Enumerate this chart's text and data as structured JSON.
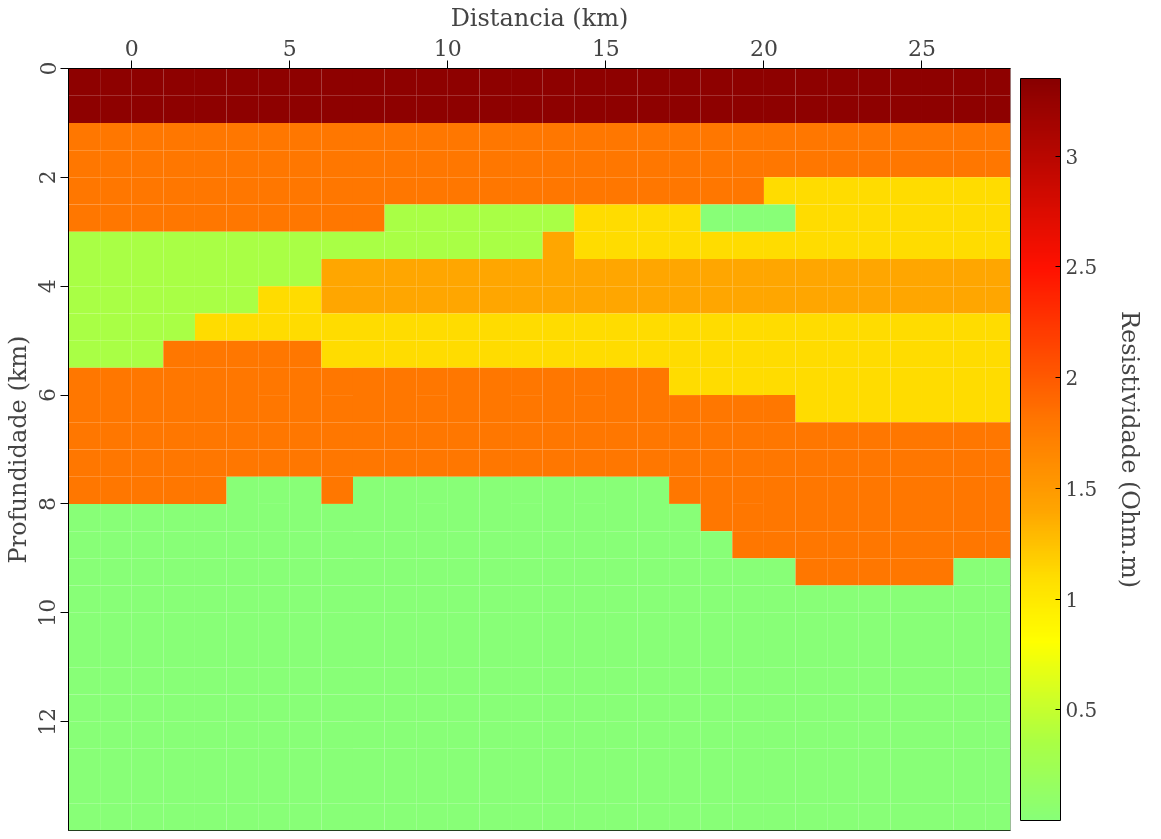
{
  "chart_data": {
    "type": "heatmap",
    "xlabel": "Distancia (km)",
    "ylabel": "Profundidade (km)",
    "clabel": "Resistividade (Ohm.m)",
    "x": [
      -1.5,
      -0.5,
      0.5,
      1.5,
      2.5,
      3.5,
      4.5,
      5.5,
      6.5,
      7.5,
      8.5,
      9.5,
      10.5,
      11.5,
      12.5,
      13.5,
      14.5,
      15.5,
      16.5,
      17.5,
      18.5,
      19.5,
      20.5,
      21.5,
      22.5,
      23.5,
      24.5,
      25.5,
      26.5,
      27.5
    ],
    "y": [
      0.25,
      0.75,
      1.25,
      1.75,
      2.25,
      2.75,
      3.25,
      3.75,
      4.25,
      4.75,
      5.25,
      5.75,
      6.25,
      6.75,
      7.25,
      7.75,
      8.25,
      8.75,
      9.25,
      9.75,
      10.25,
      10.75,
      11.25,
      11.75,
      12.25,
      12.75,
      13.25,
      13.75
    ],
    "xlim": [
      -2,
      27.8
    ],
    "ylim": [
      14,
      0
    ],
    "xticks": [
      0,
      5,
      10,
      15,
      20,
      25
    ],
    "yticks": [
      0,
      2,
      4,
      6,
      8,
      10,
      12
    ],
    "clim": [
      0,
      3.35
    ],
    "cticks": [
      0.5,
      1,
      1.5,
      2,
      2.5,
      3
    ],
    "grid": false,
    "cells": [
      [
        3.3,
        3.3,
        3.3,
        3.3,
        3.3,
        3.3,
        3.3,
        3.3,
        3.3,
        3.3,
        3.3,
        3.3,
        3.3,
        3.3,
        3.3,
        3.3,
        3.3,
        3.3,
        3.3,
        3.3,
        3.3,
        3.3,
        3.3,
        3.3,
        3.3,
        3.3,
        3.3,
        3.3,
        3.3,
        3.3
      ],
      [
        3.3,
        3.3,
        3.3,
        3.3,
        3.3,
        3.3,
        3.3,
        3.3,
        3.3,
        3.3,
        3.3,
        3.3,
        3.3,
        3.3,
        3.3,
        3.3,
        3.3,
        3.3,
        3.3,
        3.3,
        3.3,
        3.3,
        3.3,
        3.3,
        3.3,
        3.3,
        3.3,
        3.3,
        3.3,
        3.3
      ],
      [
        1.8,
        1.8,
        1.8,
        1.8,
        1.8,
        1.8,
        1.8,
        1.8,
        1.8,
        1.8,
        1.8,
        1.8,
        1.8,
        1.8,
        1.8,
        1.8,
        1.8,
        1.8,
        1.8,
        1.8,
        1.8,
        1.8,
        1.8,
        1.8,
        1.8,
        1.8,
        1.8,
        1.8,
        1.8,
        1.8
      ],
      [
        1.8,
        1.8,
        1.8,
        1.8,
        1.8,
        1.8,
        1.8,
        1.8,
        1.8,
        1.8,
        1.8,
        1.8,
        1.8,
        1.8,
        1.8,
        1.8,
        1.8,
        1.8,
        1.8,
        1.8,
        1.8,
        1.8,
        1.8,
        1.8,
        1.8,
        1.8,
        1.8,
        1.8,
        1.8,
        1.8
      ],
      [
        1.8,
        1.8,
        1.8,
        1.8,
        1.8,
        1.8,
        1.8,
        1.8,
        1.8,
        1.8,
        1.8,
        1.8,
        1.8,
        1.8,
        1.8,
        1.8,
        1.8,
        1.8,
        1.8,
        1.8,
        1.8,
        1.8,
        1.1,
        1.1,
        1.1,
        1.1,
        1.1,
        1.1,
        1.1,
        1.1
      ],
      [
        1.8,
        1.8,
        1.8,
        1.8,
        1.8,
        1.8,
        1.8,
        1.8,
        1.8,
        1.8,
        0.35,
        0.35,
        0.35,
        0.35,
        0.35,
        0.35,
        1.1,
        1.1,
        1.1,
        1.1,
        0,
        0,
        0,
        1.1,
        1.1,
        1.1,
        1.1,
        1.1,
        1.1,
        1.1
      ],
      [
        0.35,
        0.35,
        0.35,
        0.35,
        0.35,
        0.35,
        0.35,
        0.35,
        0.35,
        0.35,
        0.35,
        0.35,
        0.35,
        0.35,
        0.35,
        1.4,
        1.1,
        1.1,
        1.1,
        1.1,
        1.1,
        1.1,
        1.1,
        1.1,
        1.1,
        1.1,
        1.1,
        1.1,
        1.1,
        1.1
      ],
      [
        0.35,
        0.35,
        0.35,
        0.35,
        0.35,
        0.35,
        0.35,
        0.35,
        1.4,
        1.4,
        1.4,
        1.4,
        1.4,
        1.4,
        1.4,
        1.4,
        1.4,
        1.4,
        1.4,
        1.4,
        1.4,
        1.4,
        1.4,
        1.4,
        1.4,
        1.4,
        1.4,
        1.4,
        1.4,
        1.4
      ],
      [
        0.35,
        0.35,
        0.35,
        0.35,
        0.35,
        0.35,
        1.1,
        1.1,
        1.4,
        1.4,
        1.4,
        1.4,
        1.4,
        1.4,
        1.4,
        1.4,
        1.4,
        1.4,
        1.4,
        1.4,
        1.4,
        1.4,
        1.4,
        1.4,
        1.4,
        1.4,
        1.4,
        1.4,
        1.4,
        1.4
      ],
      [
        0.35,
        0.35,
        0.35,
        0.35,
        1.1,
        1.1,
        1.1,
        1.1,
        1.1,
        1.1,
        1.1,
        1.1,
        1.1,
        1.1,
        1.1,
        1.1,
        1.1,
        1.1,
        1.1,
        1.1,
        1.1,
        1.1,
        1.1,
        1.1,
        1.1,
        1.1,
        1.1,
        1.1,
        1.1,
        1.1
      ],
      [
        0.35,
        0.35,
        0.35,
        1.8,
        1.8,
        1.8,
        1.8,
        1.8,
        1.1,
        1.1,
        1.1,
        1.1,
        1.1,
        1.1,
        1.1,
        1.1,
        1.1,
        1.1,
        1.1,
        1.1,
        1.1,
        1.1,
        1.1,
        1.1,
        1.1,
        1.1,
        1.1,
        1.1,
        1.1,
        1.1
      ],
      [
        1.8,
        1.8,
        1.8,
        1.8,
        1.8,
        1.8,
        1.8,
        1.8,
        1.8,
        1.8,
        1.8,
        1.8,
        1.8,
        1.8,
        1.8,
        1.8,
        1.8,
        1.8,
        1.8,
        1.1,
        1.1,
        1.1,
        1.1,
        1.1,
        1.1,
        1.1,
        1.1,
        1.1,
        1.1,
        1.1
      ],
      [
        1.8,
        1.8,
        1.8,
        1.8,
        1.8,
        1.8,
        1.8,
        1.8,
        1.8,
        1.8,
        1.8,
        1.8,
        1.8,
        1.8,
        1.8,
        1.8,
        1.8,
        1.8,
        1.8,
        1.8,
        1.8,
        1.8,
        1.8,
        1.1,
        1.1,
        1.1,
        1.1,
        1.1,
        1.1,
        1.1
      ],
      [
        1.8,
        1.8,
        1.8,
        1.8,
        1.8,
        1.8,
        1.8,
        1.8,
        1.8,
        1.8,
        1.8,
        1.8,
        1.8,
        1.8,
        1.8,
        1.8,
        1.8,
        1.8,
        1.8,
        1.8,
        1.8,
        1.8,
        1.8,
        1.8,
        1.8,
        1.8,
        1.8,
        1.8,
        1.8,
        1.8
      ],
      [
        1.8,
        1.8,
        1.8,
        1.8,
        1.8,
        1.8,
        1.8,
        1.8,
        1.8,
        1.8,
        1.8,
        1.8,
        1.8,
        1.8,
        1.8,
        1.8,
        1.8,
        1.8,
        1.8,
        1.8,
        1.8,
        1.8,
        1.8,
        1.8,
        1.8,
        1.8,
        1.8,
        1.8,
        1.8,
        1.8
      ],
      [
        1.8,
        1.8,
        1.8,
        1.8,
        1.8,
        0,
        0,
        0,
        1.8,
        0,
        0,
        0,
        0,
        0,
        0,
        0,
        0,
        0,
        0,
        1.8,
        1.8,
        1.8,
        1.8,
        1.8,
        1.8,
        1.8,
        1.8,
        1.8,
        1.8,
        1.8
      ],
      [
        0,
        0,
        0,
        0,
        0,
        0,
        0,
        0,
        0,
        0,
        0,
        0,
        0,
        0,
        0,
        0,
        0,
        0,
        0,
        0,
        1.8,
        1.8,
        1.8,
        1.8,
        1.8,
        1.8,
        1.8,
        1.8,
        1.8,
        1.8
      ],
      [
        0,
        0,
        0,
        0,
        0,
        0,
        0,
        0,
        0,
        0,
        0,
        0,
        0,
        0,
        0,
        0,
        0,
        0,
        0,
        0,
        0,
        1.8,
        1.8,
        1.8,
        1.8,
        1.8,
        1.8,
        1.8,
        1.8,
        1.8
      ],
      [
        0,
        0,
        0,
        0,
        0,
        0,
        0,
        0,
        0,
        0,
        0,
        0,
        0,
        0,
        0,
        0,
        0,
        0,
        0,
        0,
        0,
        0,
        0,
        1.8,
        1.8,
        1.8,
        1.8,
        1.8,
        0,
        0
      ],
      [
        0,
        0,
        0,
        0,
        0,
        0,
        0,
        0,
        0,
        0,
        0,
        0,
        0,
        0,
        0,
        0,
        0,
        0,
        0,
        0,
        0,
        0,
        0,
        0,
        0,
        0,
        0,
        0,
        0,
        0
      ],
      [
        0,
        0,
        0,
        0,
        0,
        0,
        0,
        0,
        0,
        0,
        0,
        0,
        0,
        0,
        0,
        0,
        0,
        0,
        0,
        0,
        0,
        0,
        0,
        0,
        0,
        0,
        0,
        0,
        0,
        0
      ],
      [
        0,
        0,
        0,
        0,
        0,
        0,
        0,
        0,
        0,
        0,
        0,
        0,
        0,
        0,
        0,
        0,
        0,
        0,
        0,
        0,
        0,
        0,
        0,
        0,
        0,
        0,
        0,
        0,
        0,
        0
      ],
      [
        0,
        0,
        0,
        0,
        0,
        0,
        0,
        0,
        0,
        0,
        0,
        0,
        0,
        0,
        0,
        0,
        0,
        0,
        0,
        0,
        0,
        0,
        0,
        0,
        0,
        0,
        0,
        0,
        0,
        0
      ],
      [
        0,
        0,
        0,
        0,
        0,
        0,
        0,
        0,
        0,
        0,
        0,
        0,
        0,
        0,
        0,
        0,
        0,
        0,
        0,
        0,
        0,
        0,
        0,
        0,
        0,
        0,
        0,
        0,
        0,
        0
      ],
      [
        0,
        0,
        0,
        0,
        0,
        0,
        0,
        0,
        0,
        0,
        0,
        0,
        0,
        0,
        0,
        0,
        0,
        0,
        0,
        0,
        0,
        0,
        0,
        0,
        0,
        0,
        0,
        0,
        0,
        0
      ],
      [
        0,
        0,
        0,
        0,
        0,
        0,
        0,
        0,
        0,
        0,
        0,
        0,
        0,
        0,
        0,
        0,
        0,
        0,
        0,
        0,
        0,
        0,
        0,
        0,
        0,
        0,
        0,
        0,
        0,
        0
      ],
      [
        0,
        0,
        0,
        0,
        0,
        0,
        0,
        0,
        0,
        0,
        0,
        0,
        0,
        0,
        0,
        0,
        0,
        0,
        0,
        0,
        0,
        0,
        0,
        0,
        0,
        0,
        0,
        0,
        0,
        0
      ],
      [
        0,
        0,
        0,
        0,
        0,
        0,
        0,
        0,
        0,
        0,
        0,
        0,
        0,
        0,
        0,
        0,
        0,
        0,
        0,
        0,
        0,
        0,
        0,
        0,
        0,
        0,
        0,
        0,
        0,
        0
      ]
    ]
  }
}
